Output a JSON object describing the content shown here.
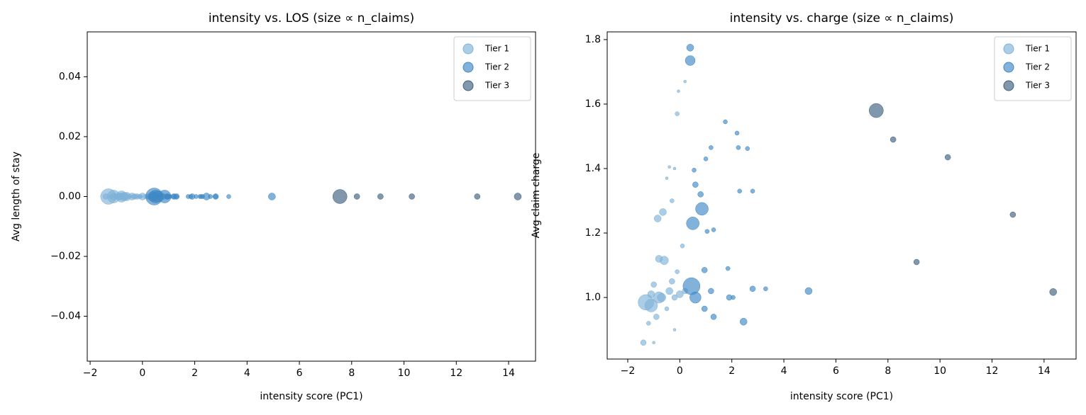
{
  "chart_data": [
    {
      "type": "scatter",
      "title": "intensity vs. LOS (size ∝ n_claims)",
      "xlabel": "intensity score (PC1)",
      "ylabel": "Avg length of stay",
      "xlim": [
        -2.11,
        15.03
      ],
      "ylim": [
        -0.055,
        0.055
      ],
      "xticks": [
        {
          "value": -2,
          "label": "−2"
        },
        0,
        2,
        4,
        6,
        8,
        10,
        12,
        14
      ],
      "yticks": [
        {
          "value": -0.04,
          "label": "−0.04"
        },
        {
          "value": -0.02,
          "label": "−0.02"
        },
        {
          "value": 0,
          "label": "0.00"
        },
        0.02,
        0.04
      ],
      "grid": false,
      "legend": "upper right",
      "series": [
        {
          "name": "Tier 1",
          "color": "#7fb2d9",
          "x": [
            -1.3,
            -1.1,
            -0.8,
            -0.6,
            -0.8,
            -0.85,
            -0.65,
            -0.1,
            -0.05,
            0.2,
            -0.4,
            -0.2,
            -0.5,
            -0.3,
            -1.4,
            -1.0,
            -0.5,
            -0.3,
            -0.7,
            -1.0,
            -1.2,
            -0.1,
            0.1,
            -0.2,
            -1.1,
            -0.9,
            0.0,
            0.2,
            -0.4,
            -0.2
          ],
          "values": [
            0,
            0,
            0,
            0,
            0,
            0,
            0,
            0,
            0,
            0,
            0,
            0,
            0,
            0,
            0,
            0,
            0,
            0,
            0,
            0,
            0,
            0,
            0,
            0,
            0,
            0,
            0,
            0,
            0,
            0
          ],
          "sizes": [
            121,
            81,
            64,
            36,
            25,
            25,
            25,
            9,
            4,
            4,
            4,
            4,
            4,
            9,
            16,
            4,
            9,
            16,
            36,
            16,
            9,
            9,
            9,
            4,
            25,
            16,
            25,
            16,
            25,
            16
          ]
        },
        {
          "name": "Tier 2",
          "color": "#3f88c5",
          "x": [
            4.95,
            3.3,
            2.8,
            2.45,
            2.3,
            2.8,
            2.2,
            2.25,
            2.6,
            1.05,
            1.85,
            1.9,
            2.05,
            1.3,
            1.2,
            1.75,
            0.85,
            0.5,
            0.45,
            0.4,
            0.4,
            0.8,
            0.95,
            1.3,
            1.2,
            0.6,
            0.55,
            0.6,
            0.95,
            1.0
          ],
          "values": [
            0,
            0,
            0,
            0,
            0,
            0,
            0,
            0,
            0,
            0,
            0,
            0,
            0,
            0,
            0,
            0,
            0,
            0,
            0,
            0,
            0,
            0,
            0,
            0,
            0,
            0,
            0,
            0,
            0,
            0
          ],
          "sizes": [
            25,
            9,
            16,
            25,
            9,
            9,
            9,
            9,
            9,
            9,
            9,
            16,
            9,
            9,
            9,
            9,
            81,
            81,
            144,
            49,
            25,
            16,
            16,
            16,
            16,
            64,
            9,
            16,
            16,
            9
          ]
        },
        {
          "name": "Tier 3",
          "color": "#3d5f7e",
          "x": [
            7.55,
            8.2,
            9.1,
            10.3,
            12.8,
            14.35
          ],
          "values": [
            0,
            0,
            0,
            0,
            0,
            0
          ],
          "sizes": [
            100,
            16,
            16,
            16,
            16,
            25
          ]
        }
      ]
    },
    {
      "type": "scatter",
      "title": "intensity vs. charge (size ∝ n_claims)",
      "xlabel": "intensity score (PC1)",
      "ylabel": "Avg claim charge",
      "xlim": [
        -2.79,
        15.23
      ],
      "ylim": [
        0.809,
        1.824
      ],
      "xticks": [
        {
          "value": -2,
          "label": "−2"
        },
        0,
        2,
        4,
        6,
        8,
        10,
        12,
        14
      ],
      "yticks": [
        {
          "value": 1.0,
          "label": "1.0"
        },
        1.2,
        1.4,
        1.6,
        1.8
      ],
      "grid": false,
      "legend": "upper right",
      "series": [
        {
          "name": "Tier 1",
          "color": "#7fb2d9",
          "x": [
            -1.3,
            -1.1,
            -0.8,
            -0.6,
            -0.8,
            -0.85,
            -0.65,
            -0.1,
            -0.05,
            0.2,
            -0.4,
            -0.2,
            -0.5,
            -0.3,
            -1.4,
            -1.0,
            -0.5,
            -0.3,
            -0.7,
            -1.0,
            -1.2,
            -0.1,
            0.1,
            -0.2,
            -1.1,
            -0.9,
            0.0,
            0.2,
            -0.4,
            -0.2
          ],
          "values": [
            0.985,
            0.975,
            1.0,
            1.115,
            1.12,
            1.245,
            1.265,
            1.57,
            1.64,
            1.67,
            1.405,
            1.4,
            1.37,
            1.3,
            0.86,
            0.86,
            0.965,
            1.05,
            1.0,
            1.04,
            0.92,
            1.08,
            1.16,
            0.9,
            1.01,
            0.94,
            1.01,
            1.02,
            1.02,
            1.0
          ],
          "sizes": [
            121,
            81,
            64,
            36,
            25,
            25,
            25,
            9,
            4,
            4,
            4,
            4,
            4,
            9,
            16,
            4,
            9,
            16,
            36,
            16,
            9,
            9,
            9,
            4,
            25,
            16,
            25,
            16,
            25,
            16
          ]
        },
        {
          "name": "Tier 2",
          "color": "#3f88c5",
          "x": [
            4.95,
            3.3,
            2.8,
            2.45,
            2.3,
            2.8,
            2.2,
            2.25,
            2.6,
            1.05,
            1.85,
            1.9,
            2.05,
            1.3,
            1.2,
            1.75,
            0.85,
            0.5,
            0.45,
            0.4,
            0.4,
            0.8,
            0.95,
            1.3,
            1.2,
            0.6,
            0.55,
            0.6,
            0.95,
            1.0
          ],
          "values": [
            1.02,
            1.027,
            1.027,
            0.925,
            1.33,
            1.33,
            1.51,
            1.465,
            1.462,
            1.205,
            1.09,
            1.0,
            1.0,
            1.21,
            1.465,
            1.545,
            1.275,
            1.23,
            1.035,
            1.735,
            1.775,
            1.32,
            1.085,
            0.94,
            1.02,
            1.0,
            1.395,
            1.35,
            0.965,
            1.43
          ],
          "sizes": [
            25,
            9,
            16,
            25,
            9,
            9,
            9,
            9,
            9,
            9,
            9,
            16,
            9,
            9,
            9,
            9,
            81,
            81,
            144,
            49,
            25,
            16,
            16,
            16,
            16,
            64,
            9,
            16,
            16,
            9
          ]
        },
        {
          "name": "Tier 3",
          "color": "#3d5f7e",
          "x": [
            7.55,
            8.2,
            9.1,
            10.3,
            12.8,
            14.35
          ],
          "values": [
            1.58,
            1.49,
            1.11,
            1.435,
            1.257,
            1.017
          ],
          "sizes": [
            100,
            16,
            16,
            16,
            16,
            25
          ]
        }
      ]
    }
  ]
}
